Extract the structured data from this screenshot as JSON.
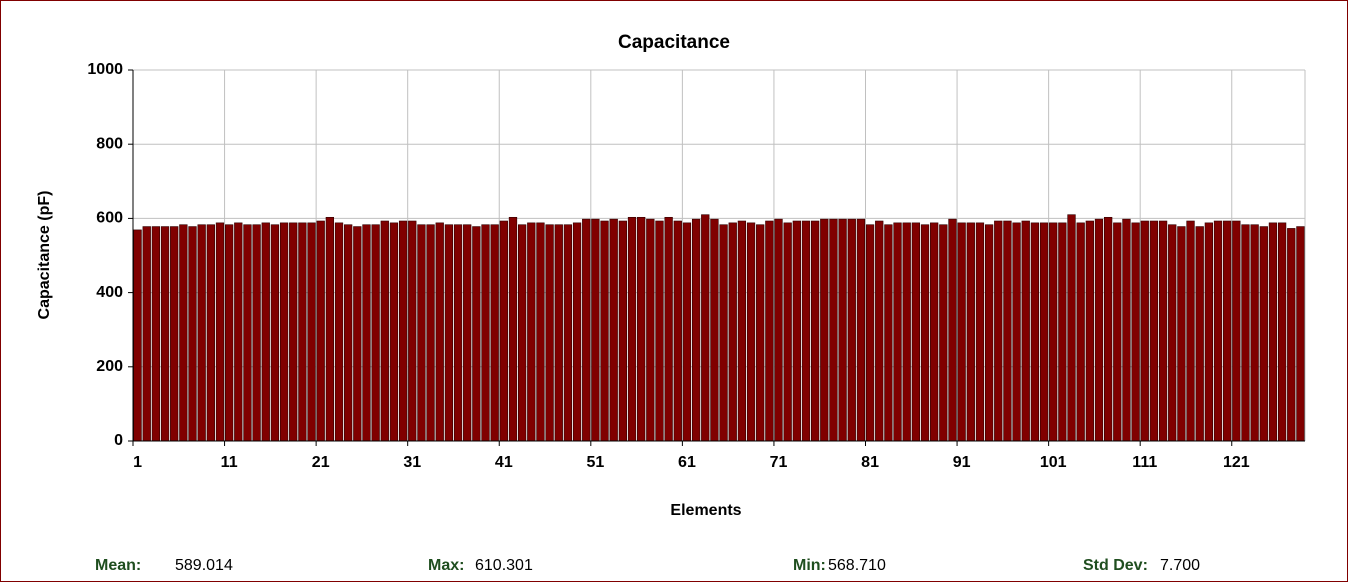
{
  "chart_data": {
    "type": "bar",
    "title": "Capacitance",
    "y_label": "Capacitance (pF)",
    "x_label": "Elements",
    "categories": [
      "1",
      null,
      null,
      null,
      null,
      null,
      null,
      null,
      null,
      null,
      "11",
      null,
      null,
      null,
      null,
      null,
      null,
      null,
      null,
      null,
      "21",
      null,
      null,
      null,
      null,
      null,
      null,
      null,
      null,
      null,
      "31",
      null,
      null,
      null,
      null,
      null,
      null,
      null,
      null,
      null,
      "41",
      null,
      null,
      null,
      null,
      null,
      null,
      null,
      null,
      null,
      "51",
      null,
      null,
      null,
      null,
      null,
      null,
      null,
      null,
      null,
      "61",
      null,
      null,
      null,
      null,
      null,
      null,
      null,
      null,
      null,
      "71",
      null,
      null,
      null,
      null,
      null,
      null,
      null,
      null,
      null,
      "81",
      null,
      null,
      null,
      null,
      null,
      null,
      null,
      null,
      null,
      "91",
      null,
      null,
      null,
      null,
      null,
      null,
      null,
      null,
      null,
      "101",
      null,
      null,
      null,
      null,
      null,
      null,
      null,
      null,
      null,
      "111",
      null,
      null,
      null,
      null,
      null,
      null,
      null,
      null,
      null,
      "121",
      null,
      null,
      null,
      null,
      null,
      null,
      null
    ],
    "values": [
      569,
      578,
      578,
      578,
      578,
      583,
      578,
      583,
      583,
      588,
      583,
      588,
      583,
      583,
      588,
      583,
      588,
      588,
      588,
      588,
      593,
      603,
      588,
      583,
      578,
      583,
      583,
      593,
      588,
      593,
      593,
      583,
      583,
      588,
      583,
      583,
      583,
      578,
      583,
      583,
      593,
      603,
      583,
      588,
      588,
      583,
      583,
      583,
      588,
      598,
      598,
      593,
      598,
      593,
      603,
      603,
      598,
      593,
      603,
      593,
      588,
      598,
      610,
      598,
      583,
      588,
      593,
      588,
      583,
      593,
      598,
      588,
      593,
      593,
      593,
      598,
      598,
      598,
      598,
      598,
      583,
      593,
      583,
      588,
      588,
      588,
      583,
      588,
      583,
      598,
      588,
      588,
      588,
      583,
      593,
      593,
      588,
      593,
      588,
      588,
      588,
      588,
      610,
      588,
      593,
      598,
      603,
      588,
      598,
      588,
      593,
      593,
      593,
      583,
      578,
      593,
      578,
      588,
      593,
      593,
      593,
      583,
      583,
      578,
      588,
      588,
      573,
      578
    ],
    "color": "#800000",
    "ylim": [
      0,
      1000
    ],
    "yticks": [
      0,
      200,
      400,
      600,
      800,
      1000
    ],
    "grid": true
  },
  "stats": [
    {
      "label": "Mean:",
      "value": "589.014"
    },
    {
      "label": "Max:",
      "value": "610.301"
    },
    {
      "label": "Min:",
      "value": "568.710"
    },
    {
      "label": "Std Dev:",
      "value": "7.700"
    }
  ]
}
